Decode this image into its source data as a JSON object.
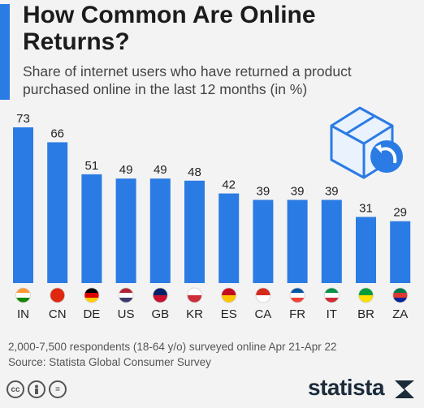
{
  "header": {
    "title": "How Common Are Online Returns?",
    "subtitle": "Share of internet users who have returned a product purchased online in the last 12 months (in %)"
  },
  "chart_data": {
    "type": "bar",
    "categories": [
      "IN",
      "CN",
      "DE",
      "US",
      "GB",
      "KR",
      "ES",
      "CA",
      "FR",
      "IT",
      "BR",
      "ZA"
    ],
    "values": [
      73,
      66,
      51,
      49,
      49,
      48,
      42,
      39,
      39,
      39,
      31,
      29
    ],
    "title": "How Common Are Online Returns?",
    "subtitle": "Share of internet users who have returned a product purchased online in the last 12 months (in %)",
    "xlabel": "",
    "ylabel": "",
    "ylim": [
      0,
      73
    ],
    "grid": false,
    "bar_color": "#2b7be4"
  },
  "footer": {
    "note": "2,000-7,500 respondents (18-64 y/o) surveyed online Apr 21-Apr 22",
    "source": "Source: Statista Global Consumer Survey",
    "cc_icons": [
      "cc",
      "by",
      "="
    ],
    "logo": "statista"
  }
}
